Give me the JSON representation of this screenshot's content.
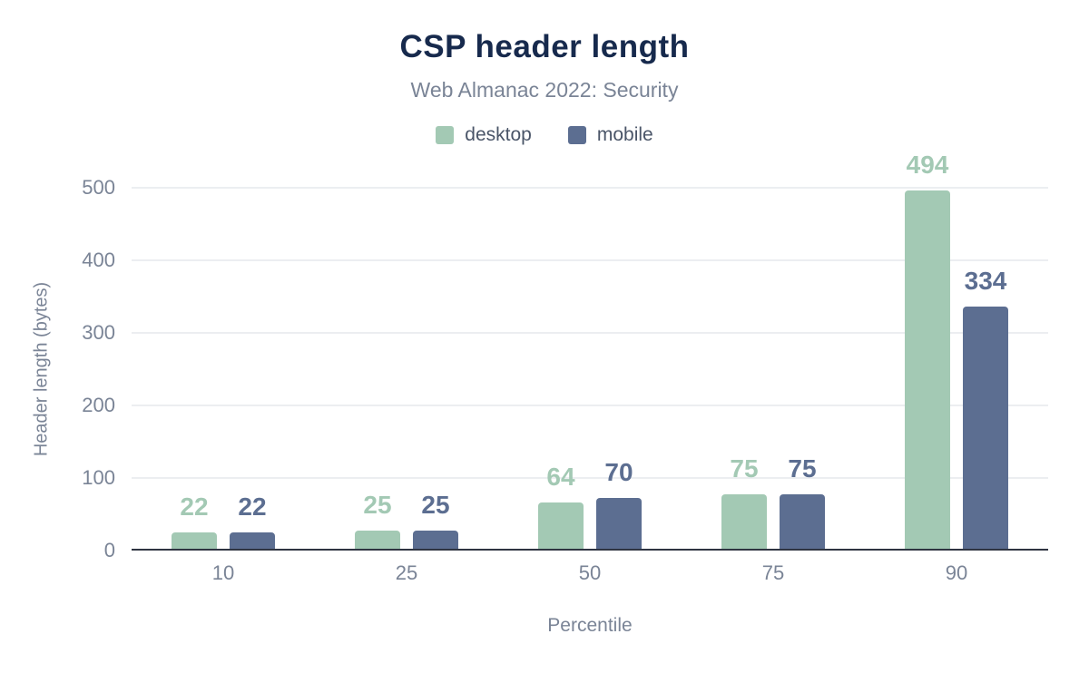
{
  "chart_data": {
    "type": "bar",
    "title": "CSP header length",
    "subtitle": "Web Almanac 2022: Security",
    "xlabel": "Percentile",
    "ylabel": "Header length (bytes)",
    "categories": [
      "10",
      "25",
      "50",
      "75",
      "90"
    ],
    "series": [
      {
        "name": "desktop",
        "color": "#a3c9b4",
        "values": [
          22,
          25,
          64,
          75,
          494
        ]
      },
      {
        "name": "mobile",
        "color": "#5c6e91",
        "values": [
          22,
          25,
          70,
          75,
          334
        ]
      }
    ],
    "ylim": [
      0,
      500
    ],
    "yticks": [
      0,
      100,
      200,
      300,
      400,
      500
    ],
    "grid": true,
    "legend_position": "top",
    "colors": {
      "title": "#172a4d",
      "subtitle": "#7a8496",
      "axis_text": "#7a8496",
      "gridline": "#eceef1",
      "axis_line": "#2f3542"
    }
  }
}
